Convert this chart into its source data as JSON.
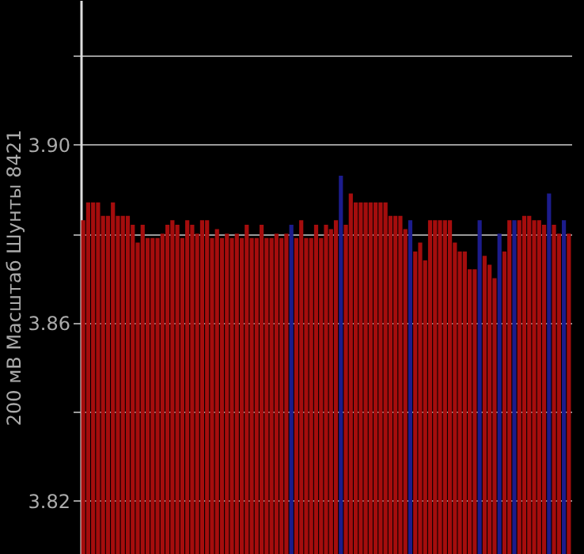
{
  "chart_data": {
    "type": "bar",
    "ylabel": "200 мВ Масштаб  Шунты 8421",
    "categories": [
      null,
      null,
      null,
      null,
      null,
      null,
      null,
      null,
      null,
      null,
      null,
      null,
      null,
      null,
      null,
      null,
      null,
      null,
      null,
      null,
      null,
      null,
      null,
      null,
      null,
      null,
      null,
      null,
      null,
      null,
      null,
      null,
      null,
      null,
      null,
      null,
      null,
      null,
      null,
      null,
      null,
      null,
      null,
      null,
      null,
      null,
      null,
      null,
      null,
      null,
      null,
      null,
      null,
      null,
      null,
      null,
      null,
      null,
      null,
      null,
      null,
      null,
      null,
      null,
      null,
      null,
      null,
      null,
      null,
      null,
      null,
      null,
      null,
      null,
      null,
      null,
      null,
      null,
      null,
      null,
      null,
      null,
      null,
      null,
      null,
      null,
      null,
      null,
      null,
      null,
      null,
      null,
      null,
      null,
      null,
      null,
      null,
      null,
      null
    ],
    "values": [
      3.883,
      3.887,
      3.887,
      3.887,
      3.884,
      3.884,
      3.887,
      3.884,
      3.884,
      3.884,
      3.882,
      3.878,
      3.882,
      3.879,
      3.879,
      3.879,
      3.88,
      3.882,
      3.883,
      3.882,
      3.879,
      3.883,
      3.882,
      3.88,
      3.883,
      3.883,
      3.879,
      3.881,
      3.879,
      3.88,
      3.879,
      3.88,
      3.879,
      3.882,
      3.879,
      3.879,
      3.882,
      3.879,
      3.879,
      3.88,
      3.879,
      3.88,
      3.882,
      3.879,
      3.883,
      3.879,
      3.879,
      3.882,
      3.879,
      3.882,
      3.881,
      3.883,
      3.893,
      3.882,
      3.889,
      3.887,
      3.887,
      3.887,
      3.887,
      3.887,
      3.887,
      3.887,
      3.884,
      3.884,
      3.884,
      3.881,
      3.883,
      3.876,
      3.878,
      3.874,
      3.883,
      3.883,
      3.883,
      3.883,
      3.883,
      3.878,
      3.876,
      3.876,
      3.872,
      3.872,
      3.883,
      3.875,
      3.873,
      3.87,
      3.88,
      3.876,
      3.883,
      3.883,
      3.883,
      3.884,
      3.884,
      3.883,
      3.883,
      3.882,
      3.889,
      3.882,
      3.88,
      3.883,
      3.88
    ],
    "colors": [
      "#a50d0d",
      "#a50d0d",
      "#a50d0d",
      "#a50d0d",
      "#a50d0d",
      "#a50d0d",
      "#a50d0d",
      "#a50d0d",
      "#a50d0d",
      "#a50d0d",
      "#a50d0d",
      "#a50d0d",
      "#a50d0d",
      "#a50d0d",
      "#a50d0d",
      "#a50d0d",
      "#a50d0d",
      "#a50d0d",
      "#a50d0d",
      "#a50d0d",
      "#a50d0d",
      "#a50d0d",
      "#a50d0d",
      "#a50d0d",
      "#a50d0d",
      "#a50d0d",
      "#a50d0d",
      "#a50d0d",
      "#a50d0d",
      "#a50d0d",
      "#a50d0d",
      "#a50d0d",
      "#a50d0d",
      "#a50d0d",
      "#a50d0d",
      "#a50d0d",
      "#a50d0d",
      "#a50d0d",
      "#a50d0d",
      "#a50d0d",
      "#a50d0d",
      "#a50d0d",
      "#1c1c8c",
      "#a50d0d",
      "#a50d0d",
      "#a50d0d",
      "#a50d0d",
      "#a50d0d",
      "#a50d0d",
      "#a50d0d",
      "#a50d0d",
      "#a50d0d",
      "#1c1c8c",
      "#a50d0d",
      "#a50d0d",
      "#a50d0d",
      "#a50d0d",
      "#a50d0d",
      "#a50d0d",
      "#a50d0d",
      "#a50d0d",
      "#a50d0d",
      "#a50d0d",
      "#a50d0d",
      "#a50d0d",
      "#a50d0d",
      "#1c1c8c",
      "#a50d0d",
      "#a50d0d",
      "#a50d0d",
      "#a50d0d",
      "#a50d0d",
      "#a50d0d",
      "#a50d0d",
      "#a50d0d",
      "#a50d0d",
      "#a50d0d",
      "#a50d0d",
      "#a50d0d",
      "#a50d0d",
      "#1c1c8c",
      "#a50d0d",
      "#a50d0d",
      "#a50d0d",
      "#1c1c8c",
      "#a50d0d",
      "#a50d0d",
      "#1c1c8c",
      "#a50d0d",
      "#a50d0d",
      "#a50d0d",
      "#a50d0d",
      "#a50d0d",
      "#a50d0d",
      "#1c1c8c",
      "#a50d0d",
      "#a50d0d",
      "#1c1c8c",
      "#a50d0d"
    ],
    "ylim": [
      3.808,
      3.9325
    ],
    "yticks": [
      {
        "value": 3.82,
        "label": "3.82"
      },
      {
        "value": 3.84,
        "label": null
      },
      {
        "value": 3.86,
        "label": "3.86"
      },
      {
        "value": 3.88,
        "label": null
      },
      {
        "value": 3.9,
        "label": "3.90"
      },
      {
        "value": 3.92,
        "label": null
      }
    ],
    "grid": "y",
    "tick_labels": "y"
  }
}
